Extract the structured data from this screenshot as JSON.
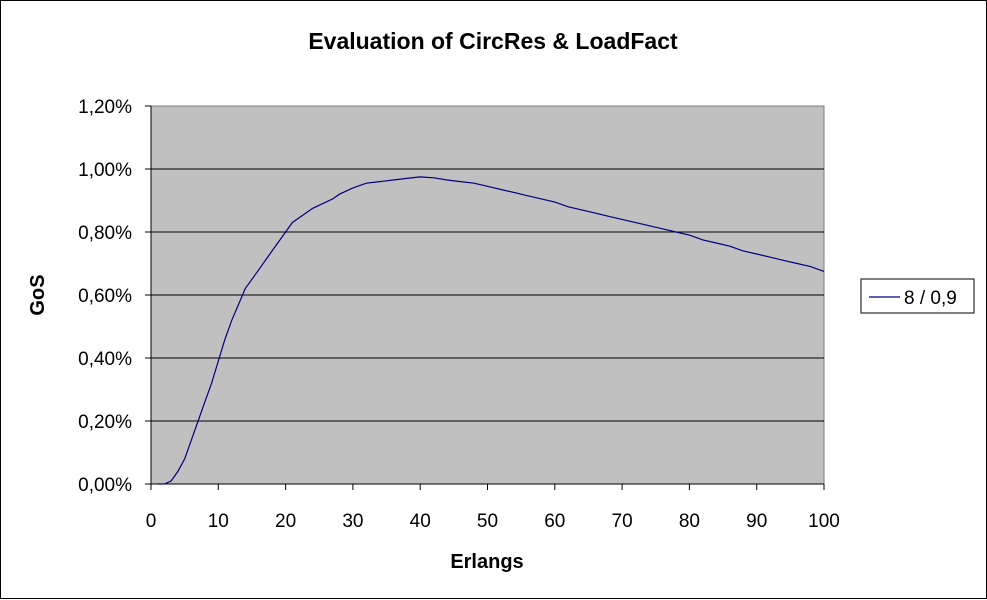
{
  "chart_data": {
    "type": "line",
    "title": "Evaluation of CircRes & LoadFact",
    "xlabel": "Erlangs",
    "ylabel": "GoS",
    "xlim": [
      0,
      100
    ],
    "ylim": [
      0,
      1.2
    ],
    "x_ticks": [
      0,
      10,
      20,
      30,
      40,
      50,
      60,
      70,
      80,
      90,
      100
    ],
    "x_tick_labels": [
      "0",
      "10",
      "20",
      "30",
      "40",
      "50",
      "60",
      "70",
      "80",
      "90",
      "100"
    ],
    "y_ticks": [
      0,
      0.2,
      0.4,
      0.6,
      0.8,
      1.0,
      1.2
    ],
    "y_tick_labels": [
      "0,00%",
      "0,20%",
      "0,40%",
      "0,60%",
      "0,80%",
      "1,00%",
      "1,20%"
    ],
    "grid": true,
    "plot_background": "#c0c0c0",
    "legend_position": "right",
    "series": [
      {
        "name": "8 / 0,9",
        "color": "#000080",
        "x": [
          1,
          2,
          3,
          4,
          5,
          6,
          7,
          8,
          9,
          10,
          11,
          12,
          13,
          14,
          15,
          16,
          17,
          18,
          19,
          20,
          21,
          22,
          23,
          24,
          25,
          26,
          27,
          28,
          29,
          30,
          32,
          34,
          36,
          38,
          40,
          42,
          44,
          46,
          48,
          50,
          52,
          54,
          56,
          58,
          60,
          62,
          64,
          66,
          68,
          70,
          72,
          74,
          76,
          78,
          80,
          82,
          84,
          86,
          88,
          90,
          92,
          94,
          96,
          98,
          100
        ],
        "y": [
          0.0,
          0.0,
          0.01,
          0.04,
          0.08,
          0.14,
          0.2,
          0.26,
          0.32,
          0.39,
          0.46,
          0.52,
          0.57,
          0.62,
          0.65,
          0.68,
          0.71,
          0.74,
          0.77,
          0.8,
          0.83,
          0.845,
          0.86,
          0.875,
          0.885,
          0.895,
          0.905,
          0.92,
          0.93,
          0.94,
          0.955,
          0.96,
          0.965,
          0.97,
          0.975,
          0.972,
          0.965,
          0.96,
          0.955,
          0.945,
          0.935,
          0.925,
          0.915,
          0.905,
          0.895,
          0.88,
          0.87,
          0.86,
          0.85,
          0.84,
          0.83,
          0.82,
          0.81,
          0.8,
          0.79,
          0.775,
          0.765,
          0.755,
          0.74,
          0.73,
          0.72,
          0.71,
          0.7,
          0.69,
          0.675
        ]
      }
    ]
  }
}
